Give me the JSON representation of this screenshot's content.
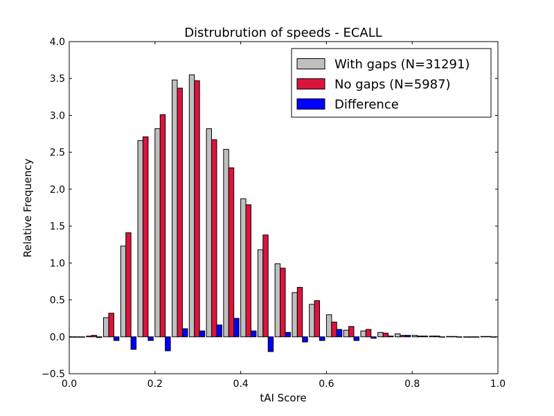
{
  "chart_data": {
    "type": "bar",
    "title": "Distrubrution of speeds - ECALL",
    "xlabel": "tAI Score",
    "ylabel": "Relative Frequency",
    "xlim": [
      0.0,
      1.0
    ],
    "ylim": [
      -0.5,
      4.0
    ],
    "xticks": [
      "0.0",
      "0.2",
      "0.4",
      "0.6",
      "0.8",
      "1.0"
    ],
    "yticks": [
      "−0.5",
      "0.0",
      "0.5",
      "1.0",
      "1.5",
      "2.0",
      "2.5",
      "3.0",
      "3.5",
      "4.0"
    ],
    "legend_position": "top-right",
    "grid": false,
    "bin_width": 0.04,
    "x": [
      0.02,
      0.06,
      0.1,
      0.14,
      0.18,
      0.22,
      0.26,
      0.3,
      0.34,
      0.38,
      0.42,
      0.46,
      0.5,
      0.54,
      0.58,
      0.62,
      0.66,
      0.7,
      0.74,
      0.78,
      0.82,
      0.86,
      0.9,
      0.94,
      0.98
    ],
    "series": [
      {
        "name": "With gaps (N=31291)",
        "color": "#bfbfbf",
        "values": [
          0.0,
          0.01,
          0.26,
          1.23,
          2.66,
          2.82,
          3.48,
          3.55,
          2.82,
          2.54,
          1.87,
          1.18,
          0.99,
          0.6,
          0.44,
          0.3,
          0.09,
          0.08,
          0.06,
          0.04,
          0.02,
          0.01,
          0.005,
          0.0,
          0.005
        ]
      },
      {
        "name": "No gaps (N=5987)",
        "color": "#dc143c",
        "values": [
          0.0,
          0.02,
          0.32,
          1.41,
          2.71,
          3.01,
          3.37,
          3.47,
          2.67,
          2.29,
          1.79,
          1.38,
          0.93,
          0.67,
          0.49,
          0.2,
          0.14,
          0.1,
          0.05,
          0.02,
          0.01,
          0.01,
          0.005,
          0.0,
          0.005
        ]
      },
      {
        "name": "Difference",
        "color": "#0000ff",
        "values": [
          0.0,
          -0.01,
          -0.05,
          -0.17,
          -0.05,
          -0.19,
          0.11,
          0.08,
          0.16,
          0.25,
          0.08,
          -0.2,
          0.06,
          -0.07,
          -0.05,
          0.1,
          -0.05,
          -0.02,
          0.01,
          0.02,
          0.01,
          0.0,
          0.0,
          0.0,
          0.0
        ]
      }
    ]
  }
}
